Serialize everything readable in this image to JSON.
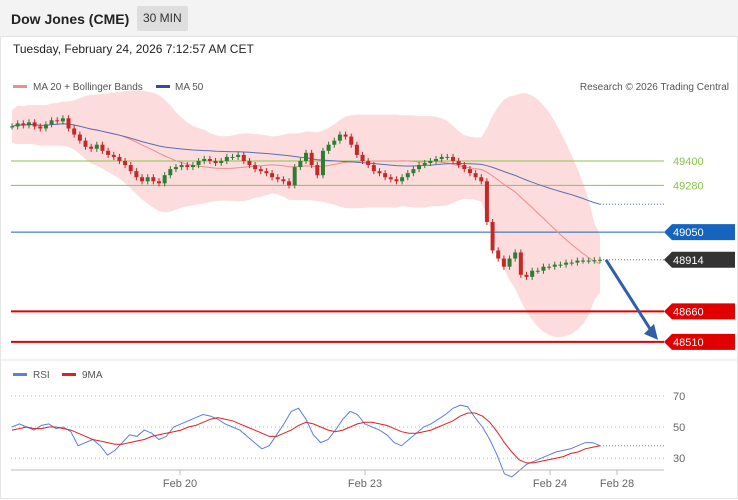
{
  "header": {
    "title": "Dow Jones (CME)",
    "interval": "30 MIN"
  },
  "datetime": "Tuesday, February 24, 2026 7:12:57 AM CET",
  "legend": {
    "ma20": "MA 20 + Bollinger Bands",
    "ma50": "MA 50",
    "credit": "Research © 2026 Trading Central"
  },
  "colors": {
    "bollinger": "#fbd0d0",
    "ma20": "#f28b8b",
    "ma50": "#5a6fb5",
    "up": "#2e7d32",
    "down": "#c62828",
    "resistance": "#8bc34a",
    "pivot": "#1565c0",
    "support": "#e00000",
    "last": "#333333",
    "rsi": "#5b7fe0",
    "rsi_ma": "#e02020",
    "arrow": "#2f5fa6"
  },
  "chart_data": [
    {
      "type": "candlestick",
      "ylim": [
        48480,
        49700
      ],
      "levels": [
        {
          "value": 49400,
          "label": "49400",
          "kind": "resistance"
        },
        {
          "value": 49280,
          "label": "49280",
          "kind": "resistance"
        },
        {
          "value": 49050,
          "label": "49050",
          "kind": "pivot"
        },
        {
          "value": 48914,
          "label": "48914",
          "kind": "last"
        },
        {
          "value": 48660,
          "label": "48660",
          "kind": "support"
        },
        {
          "value": 48510,
          "label": "48510",
          "kind": "support"
        }
      ],
      "forecast_arrow": {
        "from": 48914,
        "to": 48510
      },
      "x_labels": [
        "Feb 20",
        "Feb 23",
        "Feb 24",
        "Feb 28"
      ],
      "close_series": [
        49570,
        49585,
        49575,
        49590,
        49570,
        49560,
        49580,
        49600,
        49595,
        49610,
        49560,
        49530,
        49500,
        49470,
        49460,
        49480,
        49450,
        49430,
        49420,
        49400,
        49380,
        49350,
        49320,
        49300,
        49320,
        49300,
        49290,
        49330,
        49360,
        49370,
        49380,
        49370,
        49380,
        49400,
        49410,
        49400,
        49390,
        49400,
        49420,
        49420,
        49430,
        49400,
        49380,
        49360,
        49350,
        49340,
        49320,
        49310,
        49300,
        49280,
        49370,
        49400,
        49440,
        49380,
        49330,
        49450,
        49480,
        49500,
        49530,
        49520,
        49480,
        49430,
        49400,
        49380,
        49350,
        49340,
        49320,
        49310,
        49300,
        49320,
        49340,
        49360,
        49380,
        49390,
        49400,
        49410,
        49420,
        49420,
        49400,
        49380,
        49360,
        49340,
        49320,
        49300,
        49100,
        48960,
        48920,
        48880,
        48920,
        48950,
        48840,
        48830,
        48860,
        48860,
        48880,
        48880,
        48890,
        48890,
        48900,
        48900,
        48910,
        48910,
        48910,
        48912,
        48914
      ]
    },
    {
      "type": "line",
      "series": [
        {
          "name": "RSI"
        },
        {
          "name": "9MA"
        }
      ],
      "ylim": [
        25,
        75
      ],
      "y_ticks": [
        "70",
        "50",
        "30"
      ],
      "rsi": [
        50,
        52,
        50,
        48,
        51,
        52,
        49,
        50,
        47,
        38,
        40,
        42,
        38,
        32,
        35,
        40,
        45,
        44,
        48,
        46,
        42,
        44,
        50,
        52,
        54,
        56,
        58,
        57,
        55,
        52,
        50,
        48,
        44,
        40,
        36,
        38,
        45,
        52,
        60,
        62,
        55,
        45,
        40,
        42,
        48,
        55,
        60,
        58,
        52,
        50,
        48,
        45,
        40,
        38,
        42,
        46,
        50,
        52,
        55,
        58,
        62,
        64,
        63,
        56,
        50,
        42,
        32,
        20,
        18,
        22,
        26,
        28,
        30,
        32,
        34,
        35,
        36,
        38,
        40,
        40,
        38
      ],
      "rsi_ma": [
        48,
        49,
        50,
        49,
        49,
        50,
        50,
        49,
        48,
        46,
        44,
        42,
        41,
        40,
        39,
        39,
        40,
        41,
        42,
        44,
        45,
        46,
        47,
        48,
        50,
        51,
        53,
        55,
        56,
        55,
        54,
        52,
        50,
        48,
        46,
        44,
        44,
        46,
        48,
        51,
        53,
        52,
        50,
        48,
        47,
        48,
        50,
        52,
        53,
        53,
        52,
        51,
        49,
        47,
        46,
        46,
        47,
        48,
        50,
        52,
        54,
        57,
        59,
        59,
        57,
        53,
        47,
        40,
        34,
        29,
        27,
        27,
        28,
        29,
        30,
        31,
        33,
        34,
        36,
        37,
        38
      ]
    }
  ]
}
